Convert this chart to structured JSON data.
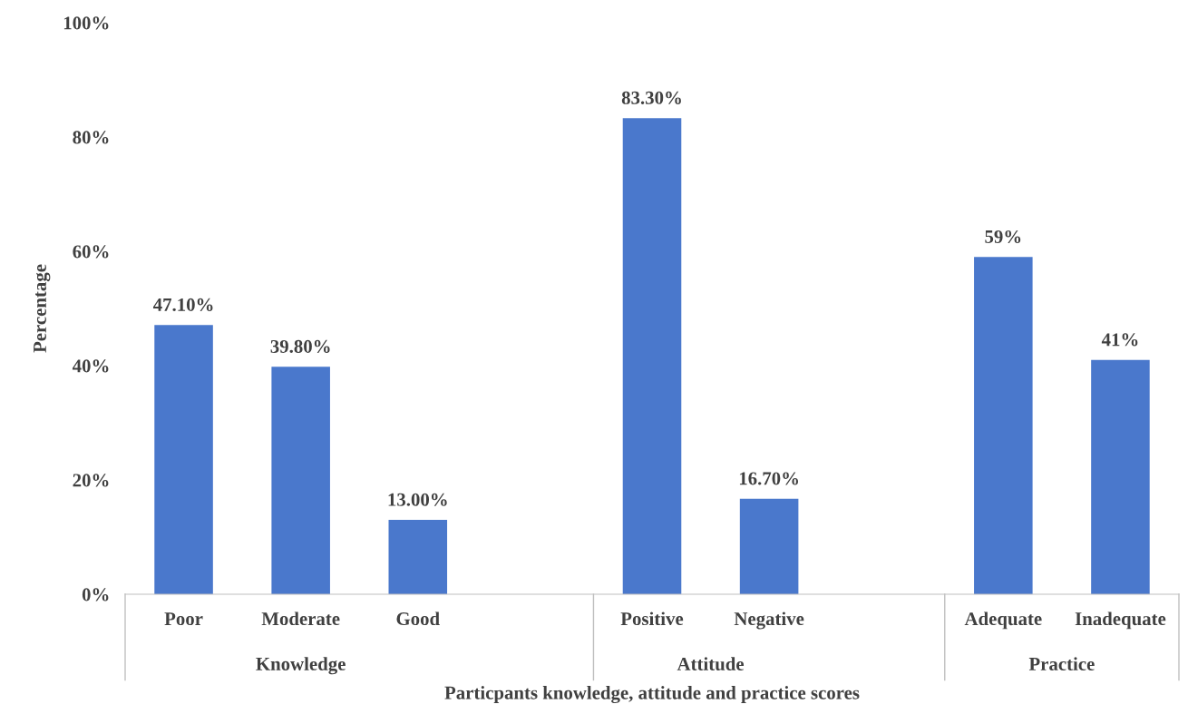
{
  "chart_data": {
    "type": "bar",
    "xlabel": "Particpants knowledge, attitude and practice scores",
    "ylabel": "Percentage",
    "categories": [
      "Poor",
      "Moderate",
      "Good",
      null,
      "Positive",
      "Negative",
      null,
      "Adequate",
      "Inadequate"
    ],
    "values": [
      47.1,
      39.8,
      13.0,
      null,
      83.3,
      16.7,
      null,
      59,
      41
    ],
    "value_labels": [
      "47.10%",
      "39.80%",
      "13.00%",
      null,
      "83.30%",
      "16.70%",
      null,
      "59%",
      "41%"
    ],
    "color": "#4a78cc",
    "ylim": [
      0,
      100
    ],
    "yticks": [
      {
        "value": 0,
        "label": "0%"
      },
      {
        "value": 20,
        "label": "20%"
      },
      {
        "value": 40,
        "label": "40%"
      },
      {
        "value": 60,
        "label": "60%"
      },
      {
        "value": 80,
        "label": "80%"
      },
      {
        "value": 100,
        "label": "100%"
      }
    ],
    "annotations": [
      "Knowledge",
      "Attitude",
      "Practice"
    ],
    "grid": false,
    "legend": false
  }
}
